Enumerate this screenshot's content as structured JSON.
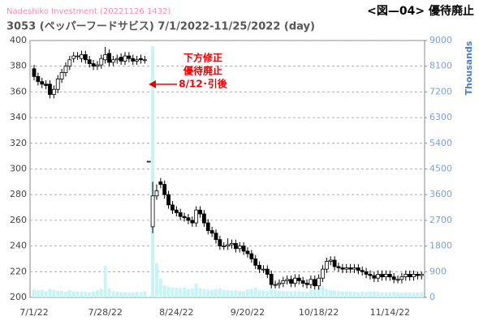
{
  "chart_data": {
    "type": "candlestick",
    "source": "Nadeshiko Investment  (20221126 1432)",
    "title": "3053 (ペッパーフードサビス) 7/1/2022-11/25/2022 (day)",
    "figure_label": "<図—04> 優待廃止",
    "y2_label": "Thousands",
    "annotation": [
      "下方修正",
      "優待廃止",
      "8/12･引後"
    ],
    "categories": [
      "7/1/22",
      null,
      null,
      null,
      null,
      null,
      null,
      null,
      null,
      null,
      null,
      null,
      null,
      null,
      null,
      null,
      null,
      null,
      "7/28/22",
      null,
      null,
      null,
      null,
      null,
      null,
      null,
      null,
      null,
      null,
      null,
      null,
      null,
      null,
      null,
      null,
      null,
      "8/24/22",
      null,
      null,
      null,
      null,
      null,
      null,
      null,
      null,
      null,
      null,
      null,
      null,
      null,
      null,
      null,
      null,
      null,
      "9/20/22",
      null,
      null,
      null,
      null,
      null,
      null,
      null,
      null,
      null,
      null,
      null,
      null,
      null,
      null,
      null,
      null,
      null,
      "10/18/22",
      null,
      null,
      null,
      null,
      null,
      null,
      null,
      null,
      null,
      null,
      null,
      null,
      null,
      null,
      null,
      null,
      null,
      "11/14/22",
      null,
      null,
      null,
      null,
      null,
      null,
      null,
      null
    ],
    "open": [
      378,
      372,
      368,
      366,
      366,
      358,
      362,
      370,
      375,
      380,
      386,
      388,
      386,
      389,
      385,
      382,
      380,
      381,
      385,
      390,
      383,
      385,
      387,
      384,
      388,
      386,
      384,
      386,
      385,
      306,
      255,
      279,
      290,
      288,
      280,
      272,
      268,
      266,
      263,
      262,
      260,
      258,
      268,
      265,
      258,
      252,
      250,
      245,
      240,
      240,
      241,
      242,
      238,
      240,
      236,
      234,
      230,
      225,
      222,
      222,
      218,
      210,
      210,
      211,
      213,
      214,
      211,
      215,
      213,
      211,
      210,
      214,
      209,
      215,
      222,
      228,
      229,
      224,
      223,
      222,
      223,
      222,
      223,
      221,
      220,
      218,
      217,
      215,
      218,
      216,
      218,
      216,
      214,
      214,
      216,
      218,
      216,
      218,
      217
    ],
    "high": [
      381,
      375,
      371,
      369,
      369,
      365,
      373,
      378,
      383,
      388,
      391,
      391,
      392,
      392,
      388,
      385,
      384,
      389,
      395,
      393,
      388,
      389,
      390,
      391,
      391,
      389,
      388,
      389,
      388,
      306,
      290,
      288,
      293,
      291,
      283,
      275,
      271,
      269,
      266,
      265,
      263,
      271,
      271,
      268,
      261,
      255,
      253,
      248,
      243,
      246,
      245,
      245,
      243,
      243,
      239,
      237,
      233,
      228,
      225,
      225,
      221,
      213,
      214,
      216,
      217,
      217,
      218,
      218,
      216,
      214,
      217,
      217,
      218,
      225,
      231,
      232,
      232,
      227,
      226,
      226,
      226,
      226,
      226,
      224,
      223,
      221,
      220,
      221,
      221,
      221,
      221,
      219,
      217,
      219,
      221,
      221,
      221,
      220,
      220
    ],
    "low": [
      369,
      365,
      363,
      362,
      355,
      355,
      359,
      367,
      372,
      377,
      383,
      385,
      383,
      382,
      379,
      377,
      377,
      378,
      382,
      380,
      380,
      382,
      381,
      381,
      383,
      381,
      381,
      382,
      382,
      306,
      250,
      276,
      285,
      277,
      269,
      265,
      263,
      260,
      259,
      257,
      255,
      255,
      262,
      255,
      249,
      247,
      242,
      237,
      237,
      237,
      238,
      235,
      235,
      233,
      231,
      227,
      222,
      219,
      219,
      215,
      207,
      207,
      207,
      208,
      210,
      208,
      208,
      210,
      208,
      207,
      207,
      206,
      206,
      212,
      219,
      225,
      221,
      220,
      219,
      219,
      219,
      219,
      218,
      217,
      215,
      214,
      212,
      212,
      213,
      213,
      213,
      211,
      211,
      211,
      213,
      213,
      213,
      214,
      214
    ],
    "close": [
      372,
      368,
      366,
      365,
      358,
      362,
      370,
      375,
      380,
      385,
      388,
      388,
      389,
      385,
      382,
      380,
      381,
      386,
      389,
      383,
      385,
      386,
      384,
      388,
      386,
      384,
      385,
      385,
      385,
      306,
      279,
      283,
      288,
      280,
      272,
      268,
      266,
      263,
      262,
      260,
      258,
      268,
      265,
      258,
      252,
      250,
      245,
      240,
      240,
      241,
      242,
      238,
      240,
      236,
      234,
      230,
      225,
      222,
      222,
      218,
      210,
      210,
      211,
      213,
      214,
      211,
      215,
      213,
      211,
      210,
      214,
      209,
      215,
      222,
      228,
      229,
      224,
      223,
      222,
      223,
      222,
      223,
      221,
      220,
      218,
      217,
      215,
      218,
      216,
      218,
      216,
      214,
      214,
      216,
      218,
      216,
      218,
      217,
      218
    ],
    "volume": [
      280,
      250,
      260,
      220,
      300,
      260,
      240,
      230,
      200,
      260,
      220,
      210,
      200,
      190,
      180,
      210,
      250,
      300,
      1100,
      320,
      220,
      200,
      190,
      180,
      170,
      180,
      200,
      190,
      220,
      30,
      8800,
      1200,
      650,
      420,
      380,
      350,
      340,
      330,
      350,
      300,
      320,
      480,
      330,
      300,
      280,
      260,
      300,
      320,
      260,
      250,
      240,
      260,
      230,
      220,
      280,
      300,
      350,
      260,
      250,
      240,
      300,
      250,
      230,
      220,
      210,
      200,
      220,
      210,
      200,
      190,
      260,
      250,
      350,
      400,
      300,
      260,
      240,
      220,
      200,
      210,
      200,
      190,
      180,
      200,
      190,
      210,
      200,
      190,
      180,
      170,
      180,
      190,
      170,
      160,
      180,
      170,
      160,
      170,
      180
    ],
    "up_color": "#ffffff",
    "down_color": "#000000",
    "volume_color": "#c8f4f4",
    "ylim": [
      200,
      400
    ],
    "yticks": [
      200,
      220,
      240,
      260,
      280,
      300,
      320,
      340,
      360,
      380,
      400
    ],
    "y2lim": [
      0,
      9000
    ],
    "y2ticks": [
      0,
      900,
      1800,
      2700,
      3600,
      4500,
      5400,
      6300,
      7200,
      8100,
      9000
    ],
    "grid": true
  }
}
